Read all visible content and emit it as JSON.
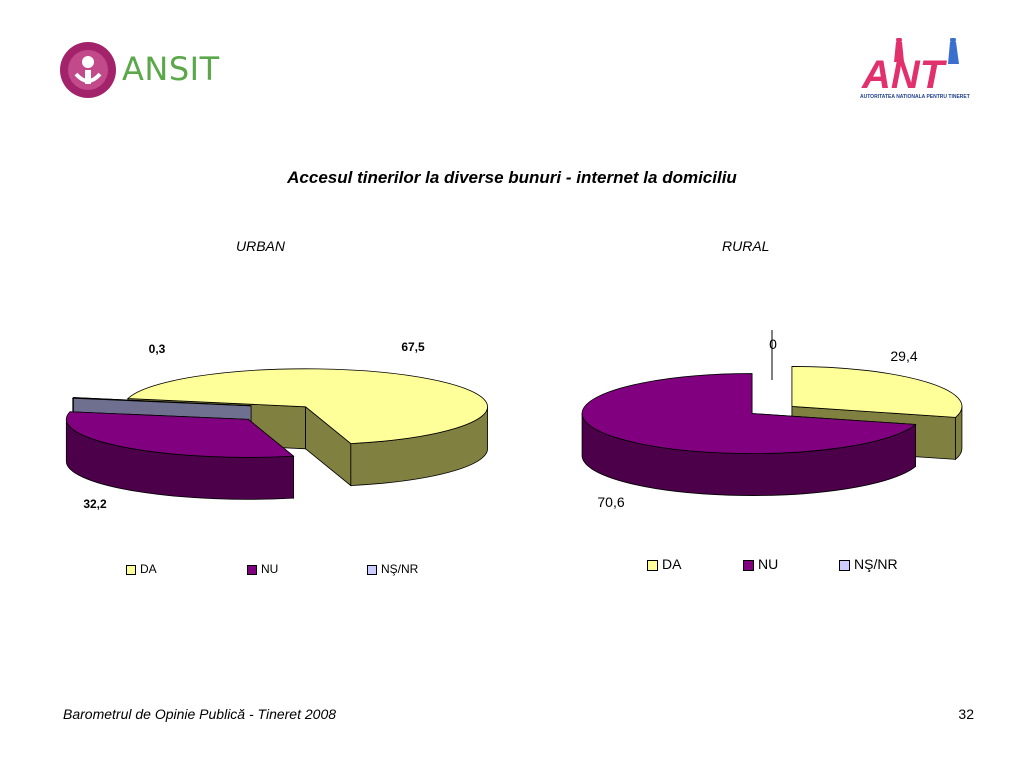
{
  "header": {
    "left_logo": {
      "text": "ANSIT",
      "icon": "ansit-logo-icon"
    },
    "right_logo": {
      "text": "ANT",
      "caption": "AUTORITATEA NATIONALA PENTRU TINERET",
      "icon": "ant-logo-icon"
    }
  },
  "title": "Accesul tinerilor la diverse bunuri - internet la domiciliu",
  "colors": {
    "DA": "#ffff99",
    "NU": "#800080",
    "NS_NR": "#ccccff"
  },
  "chart_data": [
    {
      "type": "pie",
      "title": "URBAN",
      "categories": [
        "DA",
        "NU",
        "NŞ/NR"
      ],
      "values": [
        67.5,
        32.2,
        0.3
      ],
      "data_labels": [
        "67,5",
        "32,2",
        "0,3"
      ],
      "legend": [
        "DA",
        "NU",
        "NŞ/NR"
      ],
      "legend_position": "bottom",
      "style": "3d-exploded"
    },
    {
      "type": "pie",
      "title": "RURAL",
      "categories": [
        "DA",
        "NU",
        "NŞ/NR"
      ],
      "values": [
        29.4,
        70.6,
        0
      ],
      "data_labels": [
        "29,4",
        "70,6",
        "0"
      ],
      "legend": [
        "DA",
        "NU",
        "NŞ/NR"
      ],
      "legend_position": "bottom",
      "style": "3d-exploded"
    }
  ],
  "footer": {
    "text": "Barometrul de Opinie Publică - Tineret 2008",
    "page": "32"
  }
}
